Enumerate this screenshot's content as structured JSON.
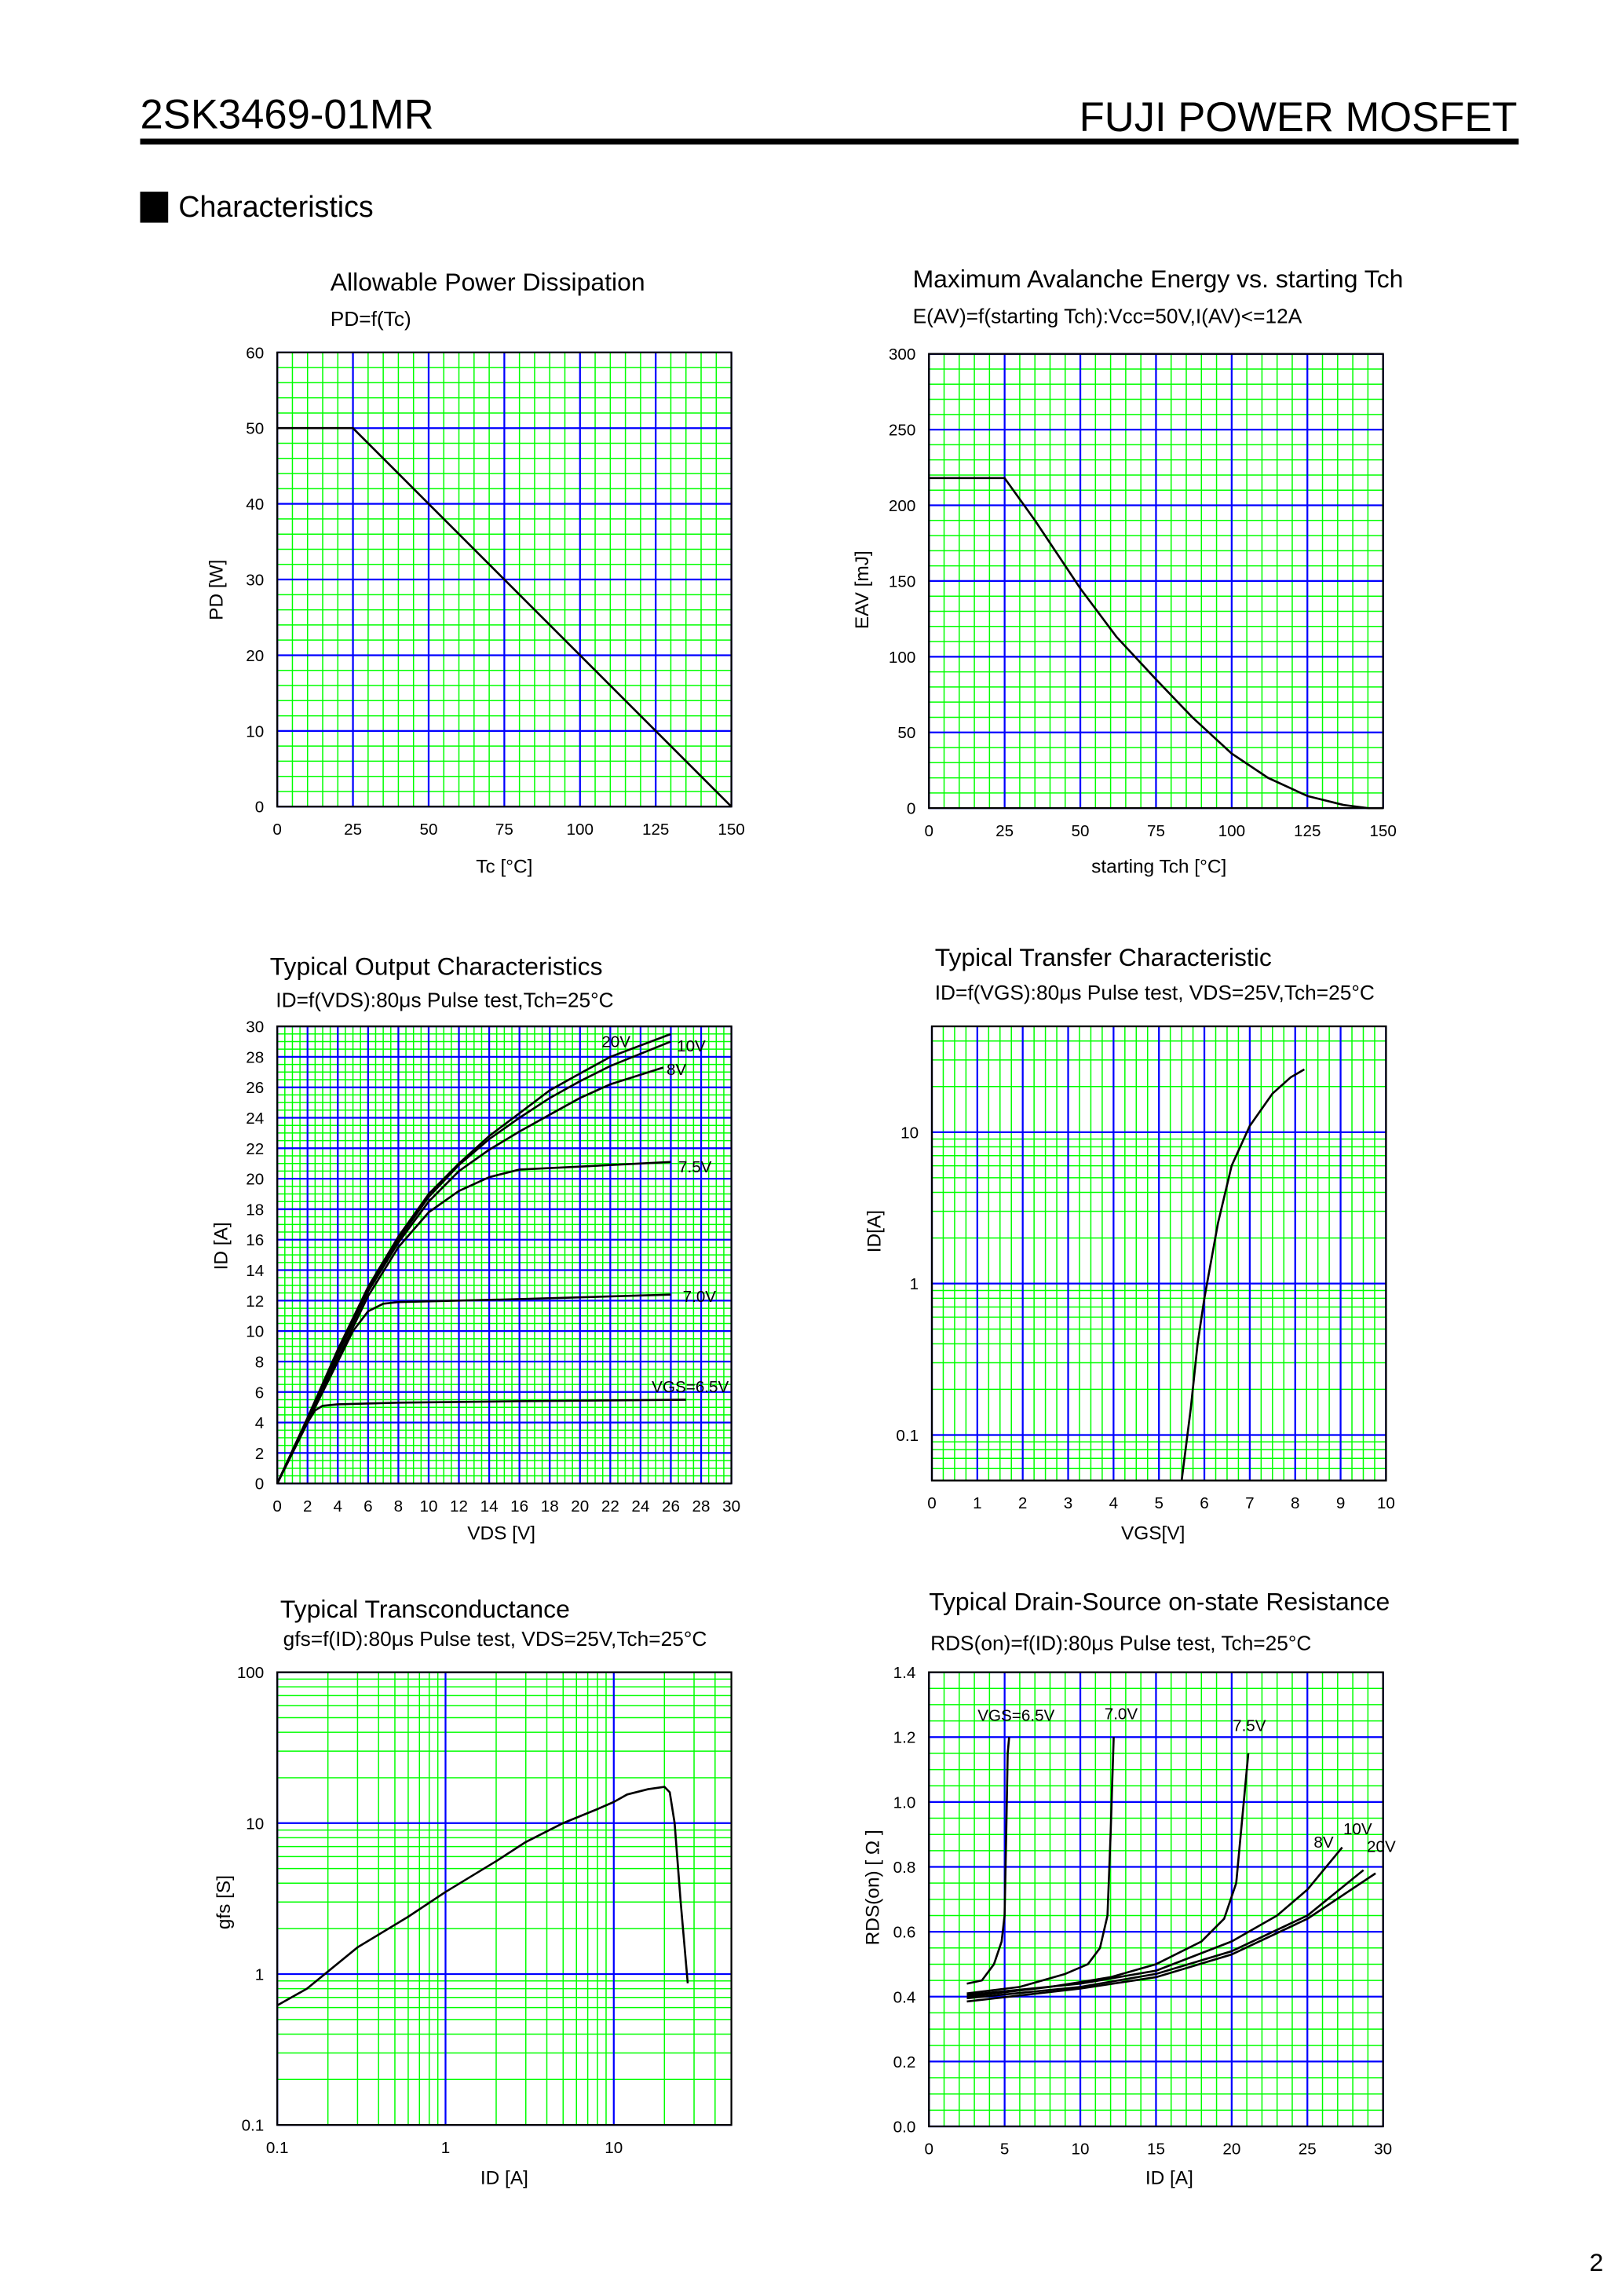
{
  "header": {
    "part_number": "2SK3469-01MR",
    "brand": "FUJI POWER MOSFET",
    "section": "Characteristics",
    "page_number": "2"
  },
  "colors": {
    "major_grid": "#0000ff",
    "minor_grid": "#00ff00",
    "curve": "#000000"
  },
  "chart_data": [
    {
      "type": "line",
      "title": "Allowable Power Dissipation",
      "subtitle": "PD=f(Tc)",
      "xlabel": "Tc [°C]",
      "ylabel": "PD [W]",
      "xscale": "linear",
      "yscale": "linear",
      "xlim": [
        0,
        150
      ],
      "ylim": [
        0,
        60
      ],
      "x_major": 25,
      "x_minor": 5,
      "y_major": 10,
      "y_minor": 2,
      "xticks": [
        0,
        25,
        50,
        75,
        100,
        125,
        150
      ],
      "xtick_labels": [
        "0",
        "25",
        "50",
        "75",
        "100",
        "125",
        "150"
      ],
      "yticks": [
        0,
        10,
        20,
        30,
        40,
        50,
        60
      ],
      "ytick_labels": [
        "0",
        "10",
        "20",
        "30",
        "40",
        "50",
        "60"
      ],
      "grid": true,
      "series": [
        {
          "points": [
            [
              0,
              50
            ],
            [
              25,
              50
            ],
            [
              150,
              0
            ]
          ]
        }
      ]
    },
    {
      "type": "line",
      "title": "Maximum Avalanche Energy vs. starting Tch",
      "subtitle": "E(AV)=f(starting Tch):Vcc=50V,I(AV)<=12A",
      "xlabel": "starting Tch [°C]",
      "ylabel": "EAV [mJ]",
      "xscale": "linear",
      "yscale": "linear",
      "xlim": [
        0,
        150
      ],
      "ylim": [
        0,
        300
      ],
      "x_major": 25,
      "x_minor": 5,
      "y_major": 50,
      "y_minor": 10,
      "xticks": [
        0,
        25,
        50,
        75,
        100,
        125,
        150
      ],
      "xtick_labels": [
        "0",
        "25",
        "50",
        "75",
        "100",
        "125",
        "150"
      ],
      "yticks": [
        0,
        50,
        100,
        150,
        200,
        250,
        300
      ],
      "ytick_labels": [
        "0",
        "50",
        "100",
        "150",
        "200",
        "250",
        "300"
      ],
      "grid": true,
      "series": [
        {
          "points": [
            [
              0,
              218
            ],
            [
              25,
              218
            ],
            [
              35,
              190
            ],
            [
              50,
              145
            ],
            [
              62,
              113
            ],
            [
              75,
              85
            ],
            [
              87,
              60
            ],
            [
              100,
              36
            ],
            [
              112,
              20
            ],
            [
              125,
              8
            ],
            [
              137,
              2
            ],
            [
              145,
              0
            ],
            [
              150,
              0
            ]
          ]
        }
      ]
    },
    {
      "type": "line",
      "title": "Typical Output Characteristics",
      "subtitle": "ID=f(VDS):80μs Pulse test,Tch=25°C",
      "xlabel": "VDS [V]",
      "ylabel": "ID [A]",
      "xscale": "linear",
      "yscale": "linear",
      "xlim": [
        0,
        30
      ],
      "ylim": [
        0,
        30
      ],
      "x_major": 2,
      "x_minor": 0.5,
      "y_major": 2,
      "y_minor": 0.5,
      "xticks": [
        0,
        2,
        4,
        6,
        8,
        10,
        12,
        14,
        16,
        18,
        20,
        22,
        24,
        26,
        28,
        30
      ],
      "xtick_labels": [
        "0",
        "2",
        "4",
        "6",
        "8",
        "10",
        "12",
        "14",
        "16",
        "18",
        "20",
        "22",
        "24",
        "26",
        "28",
        "30"
      ],
      "yticks": [
        0,
        2,
        4,
        6,
        8,
        10,
        12,
        14,
        16,
        18,
        20,
        22,
        24,
        26,
        28,
        30
      ],
      "ytick_labels": [
        "0",
        "2",
        "4",
        "6",
        "8",
        "10",
        "12",
        "14",
        "16",
        "18",
        "20",
        "22",
        "24",
        "26",
        "28",
        "30"
      ],
      "grid": true,
      "series": [
        {
          "name": "20V",
          "points": [
            [
              0,
              0
            ],
            [
              2,
              4.3
            ],
            [
              4,
              8.8
            ],
            [
              6,
              12.9
            ],
            [
              8,
              16.2
            ],
            [
              10,
              19
            ],
            [
              12,
              21
            ],
            [
              14,
              22.8
            ],
            [
              16,
              24.3
            ],
            [
              18,
              25.8
            ],
            [
              20,
              26.9
            ],
            [
              22,
              28
            ],
            [
              26,
              29.5
            ]
          ]
        },
        {
          "name": "10V",
          "points": [
            [
              0,
              0
            ],
            [
              2,
              4.3
            ],
            [
              4,
              8.7
            ],
            [
              6,
              12.8
            ],
            [
              8,
              16
            ],
            [
              10,
              18.8
            ],
            [
              12,
              20.9
            ],
            [
              14,
              22.6
            ],
            [
              16,
              24
            ],
            [
              18,
              25.3
            ],
            [
              20,
              26.4
            ],
            [
              22,
              27.4
            ],
            [
              26,
              29
            ]
          ]
        },
        {
          "name": "8V",
          "points": [
            [
              0,
              0
            ],
            [
              2,
              4.2
            ],
            [
              4,
              8.5
            ],
            [
              6,
              12.6
            ],
            [
              8,
              15.8
            ],
            [
              10,
              18.5
            ],
            [
              12,
              20.5
            ],
            [
              14,
              21.9
            ],
            [
              16,
              23.1
            ],
            [
              18,
              24.2
            ],
            [
              20,
              25.3
            ],
            [
              22,
              26.2
            ],
            [
              25.5,
              27.3
            ]
          ]
        },
        {
          "name": "7.5V",
          "points": [
            [
              0,
              0
            ],
            [
              2,
              4.1
            ],
            [
              4,
              8.2
            ],
            [
              6,
              12.3
            ],
            [
              8,
              15.5
            ],
            [
              10,
              17.8
            ],
            [
              12,
              19.2
            ],
            [
              14,
              20.1
            ],
            [
              16,
              20.6
            ],
            [
              20,
              20.8
            ],
            [
              26,
              21.1
            ]
          ]
        },
        {
          "name": "7.0V",
          "points": [
            [
              0,
              0
            ],
            [
              2,
              4
            ],
            [
              4,
              8
            ],
            [
              5,
              10
            ],
            [
              6,
              11.3
            ],
            [
              7,
              11.8
            ],
            [
              8,
              11.9
            ],
            [
              16,
              12.1
            ],
            [
              26,
              12.4
            ]
          ]
        },
        {
          "name": "VGS=6.5V",
          "points": [
            [
              0,
              0
            ],
            [
              1,
              2
            ],
            [
              2,
              4
            ],
            [
              2.5,
              4.8
            ],
            [
              3,
              5.1
            ],
            [
              4,
              5.2
            ],
            [
              8,
              5.3
            ],
            [
              16,
              5.4
            ],
            [
              27,
              5.5
            ]
          ]
        }
      ]
    },
    {
      "type": "line",
      "title": "Typical Transfer Characteristic",
      "subtitle": "ID=f(VGS):80μs Pulse test, VDS=25V,Tch=25°C",
      "xlabel": "VGS[V]",
      "ylabel": "ID[A]",
      "xscale": "linear",
      "yscale": "log",
      "xlim": [
        0,
        10
      ],
      "ylim": [
        0.05,
        50
      ],
      "x_major": 1,
      "x_minor": 0.25,
      "xticks": [
        0,
        1,
        2,
        3,
        4,
        5,
        6,
        7,
        8,
        9,
        10
      ],
      "xtick_labels": [
        "0",
        "1",
        "2",
        "3",
        "4",
        "5",
        "6",
        "7",
        "8",
        "9",
        "10"
      ],
      "yticks": [
        0.1,
        1,
        10
      ],
      "ytick_labels": [
        "0.1",
        "1",
        "10"
      ],
      "grid": true,
      "series": [
        {
          "points": [
            [
              5.5,
              0.05
            ],
            [
              5.7,
              0.15
            ],
            [
              5.85,
              0.4
            ],
            [
              6.0,
              0.8
            ],
            [
              6.3,
              2.5
            ],
            [
              6.6,
              6
            ],
            [
              7.0,
              11
            ],
            [
              7.5,
              18
            ],
            [
              7.9,
              23
            ],
            [
              8.2,
              26
            ]
          ]
        }
      ]
    },
    {
      "type": "line",
      "title": "Typical Transconductance",
      "subtitle": "gfs=f(ID):80μs Pulse test, VDS=25V,Tch=25°C",
      "xlabel": "ID [A]",
      "ylabel": "gfs [S]",
      "xscale": "log",
      "yscale": "log",
      "xlim": [
        0.1,
        50
      ],
      "ylim": [
        0.1,
        100
      ],
      "xticks": [
        0.1,
        1,
        10
      ],
      "xtick_labels": [
        "0.1",
        "1",
        "10"
      ],
      "yticks": [
        0.1,
        1,
        10,
        100
      ],
      "ytick_labels": [
        "0.1",
        "1",
        "10",
        "100"
      ],
      "grid": true,
      "series": [
        {
          "points": [
            [
              0.1,
              0.62
            ],
            [
              0.15,
              0.8
            ],
            [
              0.3,
              1.5
            ],
            [
              0.6,
              2.4
            ],
            [
              1,
              3.5
            ],
            [
              2,
              5.6
            ],
            [
              3,
              7.5
            ],
            [
              5,
              10
            ],
            [
              8,
              12.4
            ],
            [
              10,
              13.8
            ],
            [
              12,
              15.5
            ],
            [
              16,
              16.8
            ],
            [
              20,
              17.4
            ],
            [
              21.5,
              16
            ],
            [
              23,
              10
            ],
            [
              25,
              3
            ],
            [
              27.5,
              0.87
            ]
          ]
        }
      ]
    },
    {
      "type": "line",
      "title": "Typical Drain-Source on-state Resistance",
      "subtitle": "RDS(on)=f(ID):80μs Pulse test, Tch=25°C",
      "xlabel": "ID [A]",
      "ylabel": "RDS(on) [ Ω ]",
      "xscale": "linear",
      "yscale": "linear",
      "xlim": [
        0,
        30
      ],
      "ylim": [
        0,
        1.4
      ],
      "x_major": 5,
      "x_minor": 1,
      "y_major": 0.2,
      "y_minor": 0.05,
      "xticks": [
        0,
        5,
        10,
        15,
        20,
        25,
        30
      ],
      "xtick_labels": [
        "0",
        "5",
        "10",
        "15",
        "20",
        "25",
        "30"
      ],
      "yticks": [
        0,
        0.2,
        0.4,
        0.6,
        0.8,
        1.0,
        1.2,
        1.4
      ],
      "ytick_labels": [
        "0.0",
        "0.2",
        "0.4",
        "0.6",
        "0.8",
        "1.0",
        "1.2",
        "1.4"
      ],
      "grid": true,
      "series": [
        {
          "name": "VGS=6.5V",
          "points": [
            [
              2.5,
              0.44
            ],
            [
              3.5,
              0.45
            ],
            [
              4.3,
              0.5
            ],
            [
              4.8,
              0.57
            ],
            [
              5.0,
              0.65
            ],
            [
              5.1,
              0.9
            ],
            [
              5.2,
              1.15
            ],
            [
              5.3,
              1.2
            ]
          ]
        },
        {
          "name": "7.0V",
          "points": [
            [
              2.5,
              0.41
            ],
            [
              6,
              0.43
            ],
            [
              9,
              0.47
            ],
            [
              10.5,
              0.5
            ],
            [
              11.3,
              0.55
            ],
            [
              11.8,
              0.65
            ],
            [
              12,
              0.9
            ],
            [
              12.2,
              1.2
            ]
          ]
        },
        {
          "name": "7.5V",
          "points": [
            [
              2.5,
              0.4
            ],
            [
              8,
              0.43
            ],
            [
              12,
              0.46
            ],
            [
              15,
              0.5
            ],
            [
              18,
              0.57
            ],
            [
              19.5,
              0.64
            ],
            [
              20.3,
              0.75
            ],
            [
              20.7,
              0.95
            ],
            [
              21.1,
              1.15
            ]
          ]
        },
        {
          "name": "8V",
          "points": [
            [
              2.5,
              0.405
            ],
            [
              10,
              0.44
            ],
            [
              15,
              0.48
            ],
            [
              20,
              0.57
            ],
            [
              23,
              0.65
            ],
            [
              25,
              0.73
            ],
            [
              27.3,
              0.86
            ]
          ]
        },
        {
          "name": "10V",
          "points": [
            [
              2.5,
              0.395
            ],
            [
              10,
              0.43
            ],
            [
              15,
              0.47
            ],
            [
              20,
              0.54
            ],
            [
              25,
              0.65
            ],
            [
              28.7,
              0.79
            ]
          ]
        },
        {
          "name": "20V",
          "points": [
            [
              2.5,
              0.385
            ],
            [
              10,
              0.425
            ],
            [
              15,
              0.46
            ],
            [
              20,
              0.53
            ],
            [
              25,
              0.64
            ],
            [
              29.5,
              0.78
            ]
          ]
        }
      ]
    }
  ]
}
